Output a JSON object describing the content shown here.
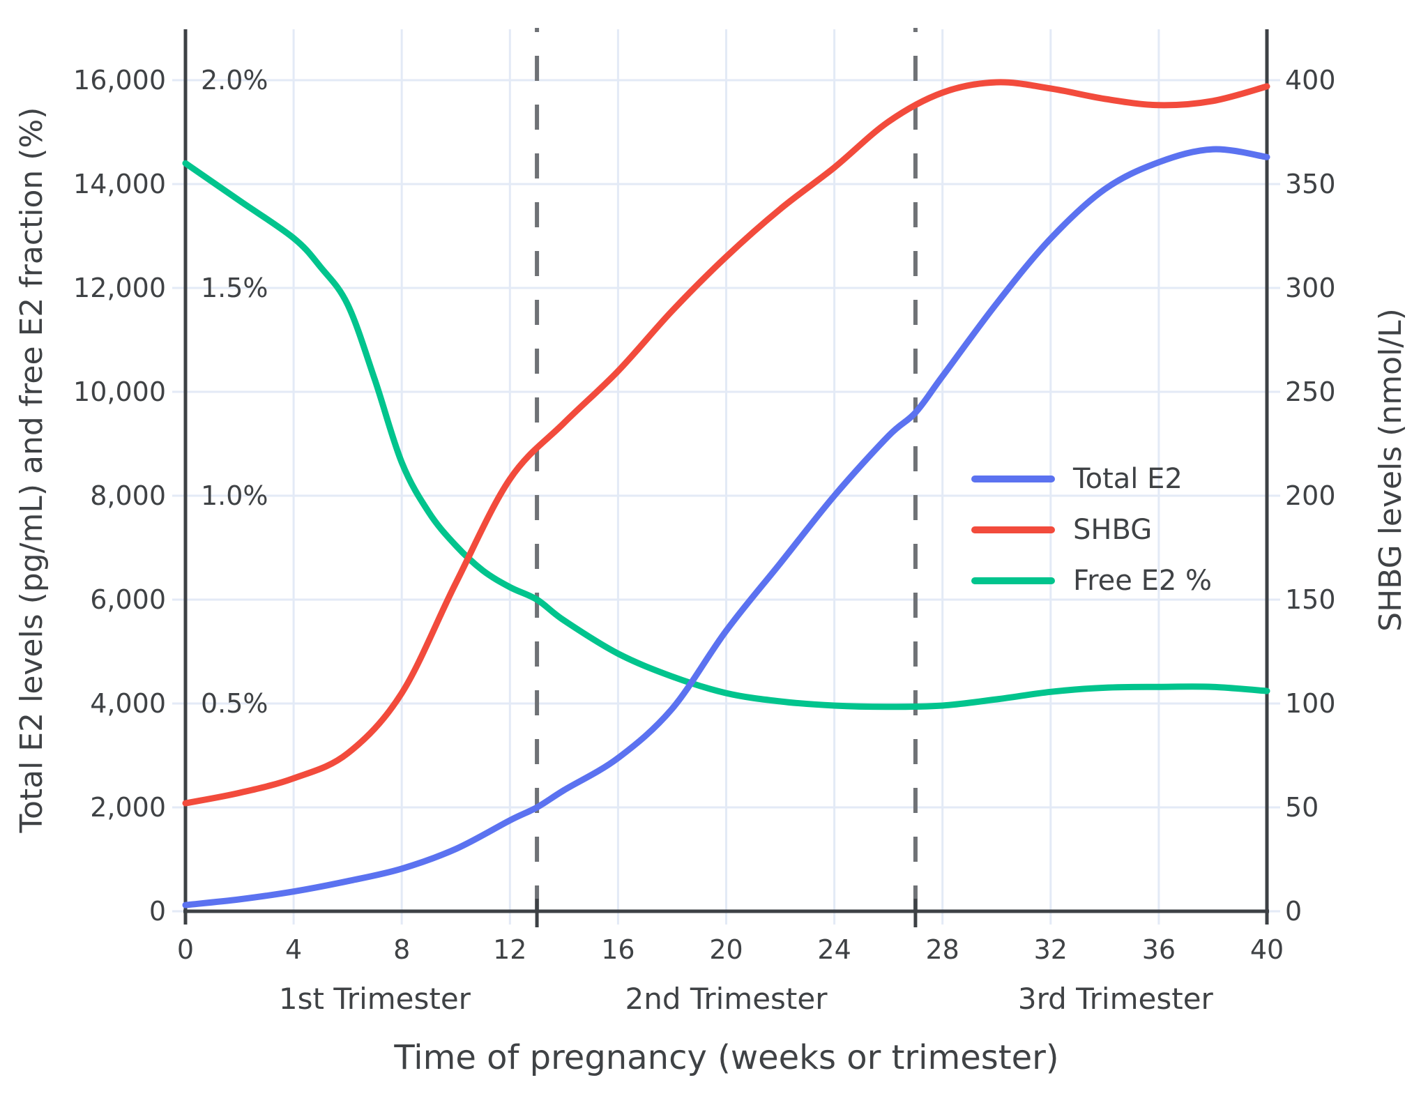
{
  "chart_data": {
    "type": "line",
    "title": "",
    "xlabel": "Time of pregnancy (weeks or trimester)",
    "ylabel_left": "Total E2 levels (pg/mL) and free E2 fraction (%)",
    "ylabel_right": "SHBG levels (nmol/L)",
    "x_range": [
      0,
      40
    ],
    "x_ticks": [
      0,
      4,
      8,
      12,
      16,
      20,
      24,
      28,
      32,
      36,
      40
    ],
    "left_axis": {
      "range": [
        0,
        16000
      ],
      "tick_values": [
        0,
        2000,
        4000,
        6000,
        8000,
        10000,
        12000,
        14000,
        16000
      ],
      "tick_labels": [
        "0",
        "2,000",
        "4,000",
        "6,000",
        "8,000",
        "10,000",
        "12,000",
        "14,000",
        "16,000"
      ]
    },
    "percent_axis": {
      "note": "free E2 fraction shares left axis, 1% = 8000 units",
      "pct_to_left_units": 8000,
      "labels": [
        "0.5%",
        "1.0%",
        "1.5%",
        "2.0%"
      ],
      "values_pct": [
        0.5,
        1.0,
        1.5,
        2.0
      ]
    },
    "right_axis": {
      "range": [
        0,
        400
      ],
      "tick_values": [
        0,
        50,
        100,
        150,
        200,
        250,
        300,
        350,
        400
      ]
    },
    "grid": true,
    "trimester_divider_weeks": [
      13,
      27
    ],
    "trimesters": [
      {
        "label": "1st Trimester",
        "center_week": 7
      },
      {
        "label": "2nd Trimester",
        "center_week": 20
      },
      {
        "label": "3rd Trimester",
        "center_week": 34.4
      }
    ],
    "legend": {
      "position": "center-right",
      "entries": [
        "Total E2",
        "SHBG",
        "Free E2 %"
      ]
    },
    "series": [
      {
        "name": "Total E2",
        "axis": "left",
        "unit": "pg/mL",
        "color": "#5b72f0",
        "points": [
          [
            0,
            120
          ],
          [
            2,
            230
          ],
          [
            4,
            380
          ],
          [
            6,
            580
          ],
          [
            8,
            820
          ],
          [
            10,
            1200
          ],
          [
            12,
            1750
          ],
          [
            13,
            2000
          ],
          [
            14,
            2330
          ],
          [
            16,
            2950
          ],
          [
            18,
            3900
          ],
          [
            20,
            5400
          ],
          [
            22,
            6700
          ],
          [
            24,
            8000
          ],
          [
            26,
            9150
          ],
          [
            27,
            9600
          ],
          [
            28,
            10300
          ],
          [
            30,
            11700
          ],
          [
            32,
            12950
          ],
          [
            34,
            13900
          ],
          [
            36,
            14420
          ],
          [
            38,
            14670
          ],
          [
            40,
            14520
          ]
        ]
      },
      {
        "name": "SHBG",
        "axis": "right",
        "unit": "nmol/L",
        "color": "#f24b3c",
        "points": [
          [
            0,
            52
          ],
          [
            2,
            57
          ],
          [
            4,
            64
          ],
          [
            6,
            76
          ],
          [
            8,
            105
          ],
          [
            10,
            158
          ],
          [
            12,
            208
          ],
          [
            14,
            235
          ],
          [
            16,
            260
          ],
          [
            18,
            289
          ],
          [
            20,
            315
          ],
          [
            22,
            338
          ],
          [
            24,
            358
          ],
          [
            26,
            380
          ],
          [
            28,
            394
          ],
          [
            30,
            399
          ],
          [
            32,
            396
          ],
          [
            34,
            391
          ],
          [
            36,
            388
          ],
          [
            38,
            390
          ],
          [
            40,
            397
          ]
        ]
      },
      {
        "name": "Free E2 %",
        "axis": "left-percent",
        "unit": "%",
        "color": "#01c48d",
        "points": [
          [
            0,
            1.8
          ],
          [
            2,
            1.71
          ],
          [
            4,
            1.62
          ],
          [
            5,
            1.55
          ],
          [
            6,
            1.46
          ],
          [
            7,
            1.28
          ],
          [
            8,
            1.08
          ],
          [
            9,
            0.96
          ],
          [
            10,
            0.88
          ],
          [
            11,
            0.82
          ],
          [
            12,
            0.78
          ],
          [
            13,
            0.75
          ],
          [
            14,
            0.7
          ],
          [
            16,
            0.62
          ],
          [
            18,
            0.565
          ],
          [
            20,
            0.525
          ],
          [
            22,
            0.505
          ],
          [
            24,
            0.495
          ],
          [
            26,
            0.492
          ],
          [
            28,
            0.495
          ],
          [
            30,
            0.51
          ],
          [
            32,
            0.528
          ],
          [
            34,
            0.538
          ],
          [
            36,
            0.54
          ],
          [
            38,
            0.54
          ],
          [
            40,
            0.53
          ]
        ]
      }
    ],
    "colors": {
      "grid": "#e3eaf6",
      "axis": "#3d4145",
      "text": "#3f4245",
      "divider": "#6f7276",
      "background": "#ffffff"
    }
  }
}
